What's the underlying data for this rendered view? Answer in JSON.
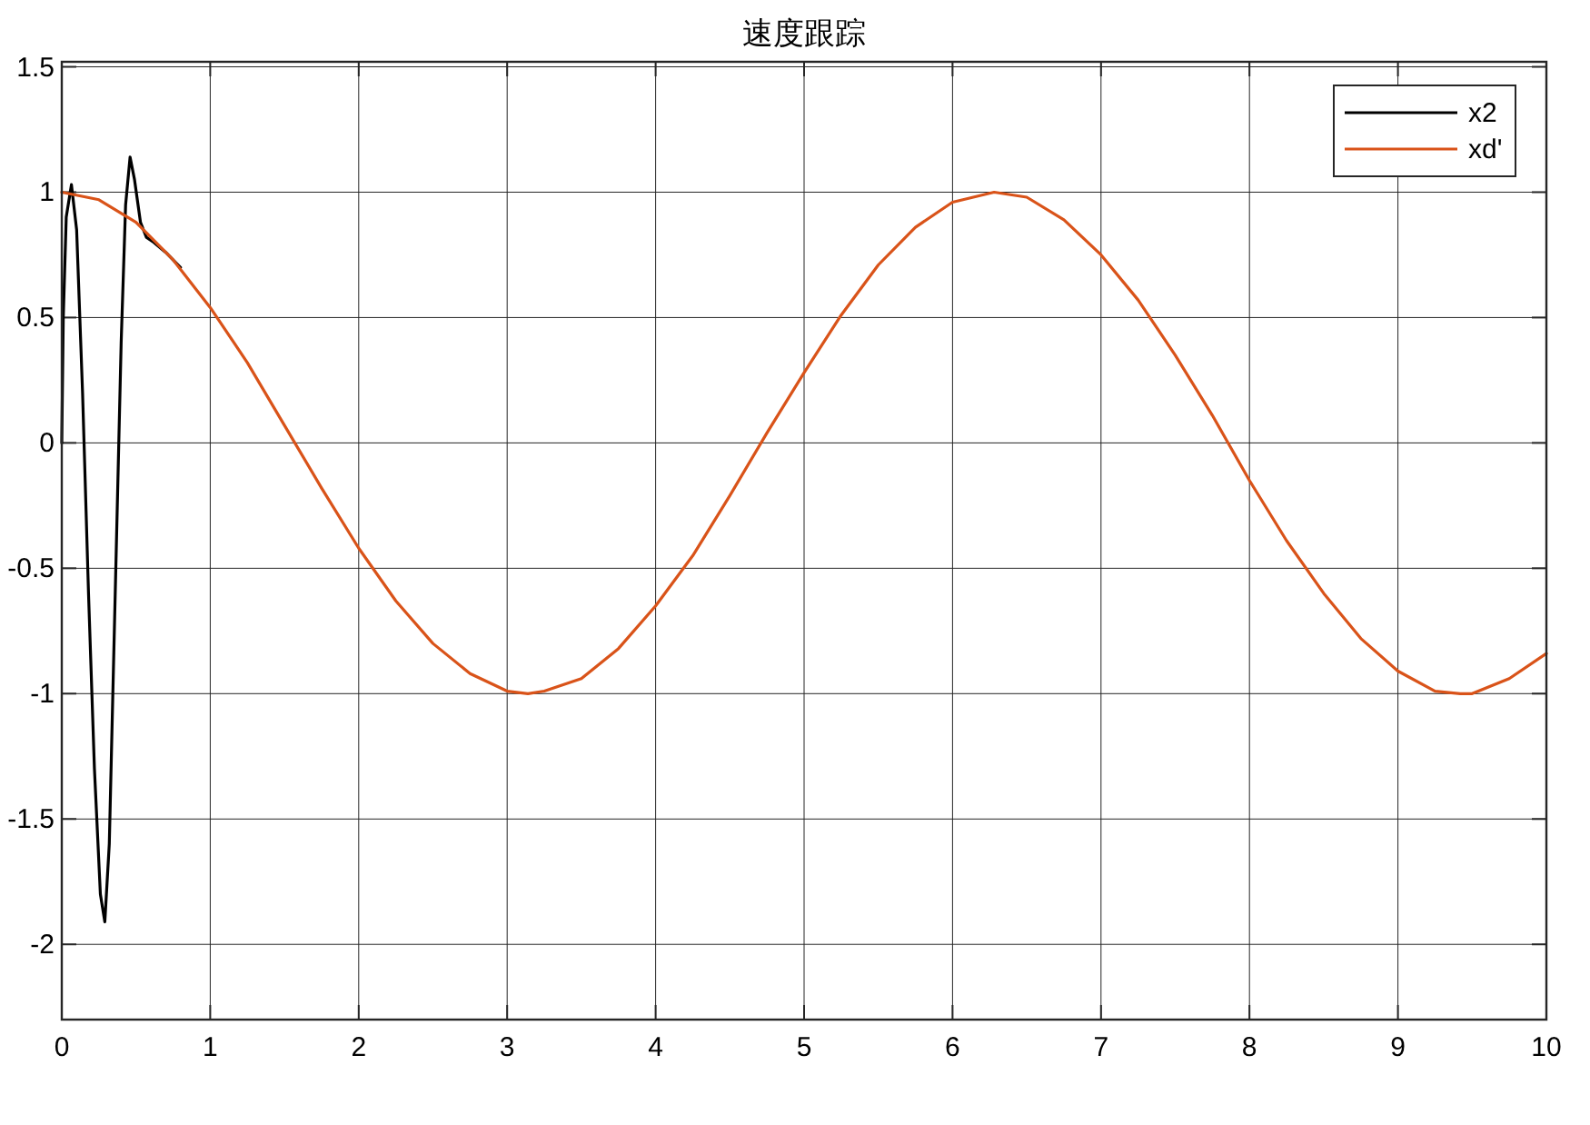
{
  "chart_data": {
    "type": "line",
    "title": "速度跟踪",
    "xlim": [
      0,
      10
    ],
    "ylim": [
      -2.3,
      1.52
    ],
    "xticks": [
      0,
      1,
      2,
      3,
      4,
      5,
      6,
      7,
      8,
      9,
      10
    ],
    "yticks": [
      -2,
      -1.5,
      -1,
      -0.5,
      0,
      0.5,
      1,
      1.5
    ],
    "grid": true,
    "legend": "top right",
    "marker": "none",
    "line_style": "solid",
    "series": [
      {
        "name": "x2",
        "color": "#000000",
        "x": [
          0,
          0.01,
          0.03,
          0.065,
          0.1,
          0.14,
          0.18,
          0.22,
          0.26,
          0.29,
          0.32,
          0.36,
          0.4,
          0.43,
          0.46,
          0.49,
          0.53,
          0.57,
          0.62,
          0.7,
          0.8
        ],
        "values": [
          0,
          0.5,
          0.9,
          1.03,
          0.85,
          0.2,
          -0.6,
          -1.3,
          -1.8,
          -1.91,
          -1.6,
          -0.6,
          0.4,
          0.95,
          1.14,
          1.05,
          0.88,
          0.82,
          0.8,
          0.76,
          0.7
        ]
      },
      {
        "name": "xd'",
        "color": "#d95319",
        "x": [
          0,
          0.25,
          0.5,
          0.75,
          1,
          1.25,
          1.5,
          1.75,
          2,
          2.25,
          2.5,
          2.75,
          3,
          3.14,
          3.25,
          3.5,
          3.75,
          4,
          4.25,
          4.5,
          4.75,
          5,
          5.25,
          5.5,
          5.75,
          6,
          6.28,
          6.5,
          6.75,
          7,
          7.25,
          7.5,
          7.75,
          8,
          8.25,
          8.5,
          8.75,
          9,
          9.25,
          9.42,
          9.5,
          9.75,
          10
        ],
        "values": [
          1,
          0.97,
          0.88,
          0.73,
          0.54,
          0.32,
          0.07,
          -0.18,
          -0.42,
          -0.63,
          -0.8,
          -0.92,
          -0.99,
          -1,
          -0.99,
          -0.94,
          -0.82,
          -0.65,
          -0.45,
          -0.21,
          0.04,
          0.28,
          0.51,
          0.71,
          0.86,
          0.96,
          1,
          0.98,
          0.89,
          0.75,
          0.57,
          0.35,
          0.11,
          -0.15,
          -0.39,
          -0.6,
          -0.78,
          -0.91,
          -0.99,
          -1,
          -1,
          -0.94,
          -0.84
        ]
      }
    ]
  }
}
